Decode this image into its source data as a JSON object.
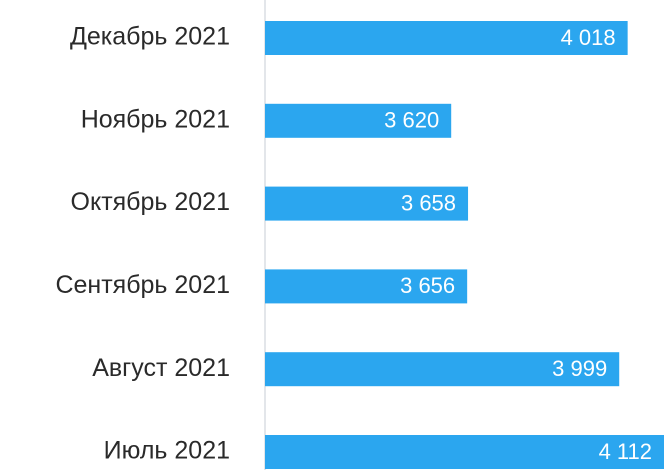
{
  "chart_data": {
    "type": "bar",
    "orientation": "horizontal",
    "categories": [
      "Декабрь 2021",
      "Ноябрь 2021",
      "Октябрь 2021",
      "Сентябрь 2021",
      "Август 2021",
      "Июль 2021"
    ],
    "values": [
      4018,
      3620,
      3658,
      3656,
      3999,
      4112
    ],
    "value_labels": [
      "4 018",
      "3 620",
      "3 658",
      "3 656",
      "3 999",
      "4 112"
    ],
    "color": "#2ba6ef",
    "xlim": [
      3200,
      4100
    ]
  }
}
